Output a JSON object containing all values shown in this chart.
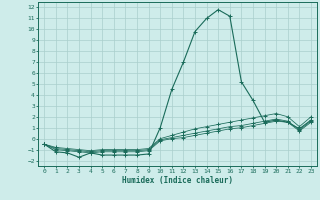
{
  "background_color": "#ceecea",
  "grid_color": "#aacfcc",
  "line_color": "#1a6b5a",
  "x_label": "Humidex (Indice chaleur)",
  "xlim": [
    -0.5,
    23.5
  ],
  "ylim": [
    -2.5,
    12.5
  ],
  "x_ticks": [
    0,
    1,
    2,
    3,
    4,
    5,
    6,
    7,
    8,
    9,
    10,
    11,
    12,
    13,
    14,
    15,
    16,
    17,
    18,
    19,
    20,
    21,
    22,
    23
  ],
  "y_ticks": [
    -2,
    -1,
    0,
    1,
    2,
    3,
    4,
    5,
    6,
    7,
    8,
    9,
    10,
    11,
    12
  ],
  "series": [
    {
      "x": [
        0,
        1,
        2,
        3,
        4,
        5,
        6,
        7,
        8,
        9,
        10,
        11,
        12,
        13,
        14,
        15,
        16,
        17,
        18,
        19,
        20,
        21,
        22,
        23
      ],
      "y": [
        -0.5,
        -1.2,
        -1.3,
        -1.7,
        -1.3,
        -1.5,
        -1.5,
        -1.5,
        -1.5,
        -1.4,
        1.0,
        4.5,
        7.0,
        9.8,
        11.0,
        11.8,
        11.2,
        5.2,
        3.5,
        1.5,
        1.7,
        1.5,
        0.9,
        1.7
      ]
    },
    {
      "x": [
        0,
        1,
        2,
        3,
        4,
        5,
        6,
        7,
        8,
        9,
        10,
        11,
        12,
        13,
        14,
        15,
        16,
        17,
        18,
        19,
        20,
        21,
        22,
        23
      ],
      "y": [
        -0.5,
        -1.0,
        -1.1,
        -1.2,
        -1.3,
        -1.2,
        -1.2,
        -1.2,
        -1.2,
        -1.1,
        -0.2,
        0.0,
        0.1,
        0.3,
        0.5,
        0.7,
        0.9,
        1.0,
        1.2,
        1.4,
        1.6,
        1.5,
        0.7,
        1.5
      ]
    },
    {
      "x": [
        0,
        1,
        2,
        3,
        4,
        5,
        6,
        7,
        8,
        9,
        10,
        11,
        12,
        13,
        14,
        15,
        16,
        17,
        18,
        19,
        20,
        21,
        22,
        23
      ],
      "y": [
        -0.5,
        -0.9,
        -1.0,
        -1.1,
        -1.2,
        -1.1,
        -1.1,
        -1.1,
        -1.1,
        -1.0,
        -0.1,
        0.1,
        0.3,
        0.5,
        0.7,
        0.9,
        1.1,
        1.2,
        1.4,
        1.6,
        1.8,
        1.6,
        0.8,
        1.6
      ]
    },
    {
      "x": [
        0,
        1,
        2,
        3,
        4,
        5,
        6,
        7,
        8,
        9,
        10,
        11,
        12,
        13,
        14,
        15,
        16,
        17,
        18,
        19,
        20,
        21,
        22,
        23
      ],
      "y": [
        -0.5,
        -0.8,
        -0.9,
        -1.0,
        -1.1,
        -1.0,
        -1.0,
        -1.0,
        -1.0,
        -0.9,
        0.0,
        0.3,
        0.6,
        0.9,
        1.1,
        1.3,
        1.5,
        1.7,
        1.9,
        2.1,
        2.3,
        2.0,
        1.1,
        2.0
      ]
    }
  ]
}
